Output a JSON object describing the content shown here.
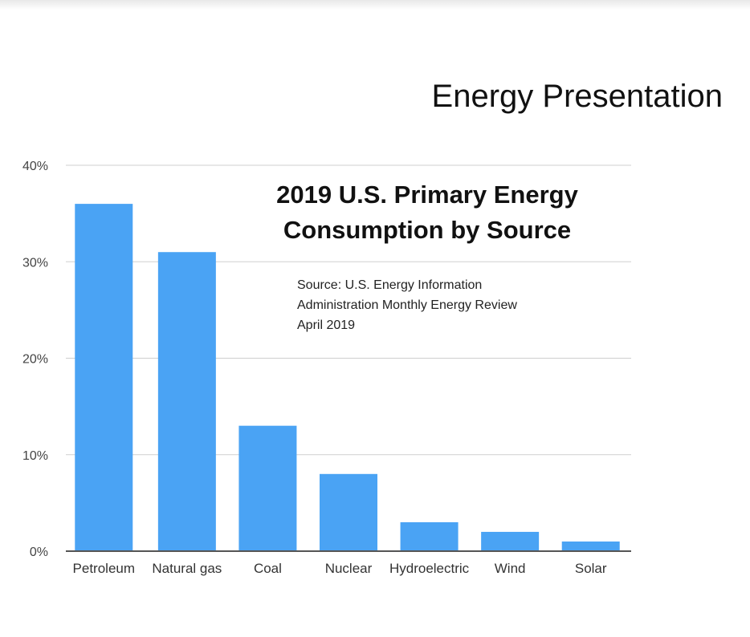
{
  "slide": {
    "title": "Energy Presentation"
  },
  "chart_data": {
    "type": "bar",
    "title_lines": [
      "2019 U.S. Primary Energy",
      "Consumption by Source"
    ],
    "source_lines": [
      "Source: U.S. Energy Information",
      "Administration Monthly Energy Review",
      "April 2019"
    ],
    "categories": [
      "Petroleum",
      "Natural gas",
      "Coal",
      "Nuclear",
      "Hydroelectric",
      "Wind",
      "Solar"
    ],
    "values": [
      36,
      31,
      13,
      8,
      3,
      2,
      1
    ],
    "unit": "%",
    "ylim": [
      0,
      40
    ],
    "yticks": [
      0,
      10,
      20,
      30,
      40
    ],
    "ytick_labels": [
      "0%",
      "10%",
      "20%",
      "30%",
      "40%"
    ],
    "xlabel": "",
    "ylabel": "",
    "grid": true,
    "colors": {
      "bar": "#4aa3f4",
      "grid": "#cfcfcf",
      "axis": "#555555"
    }
  }
}
